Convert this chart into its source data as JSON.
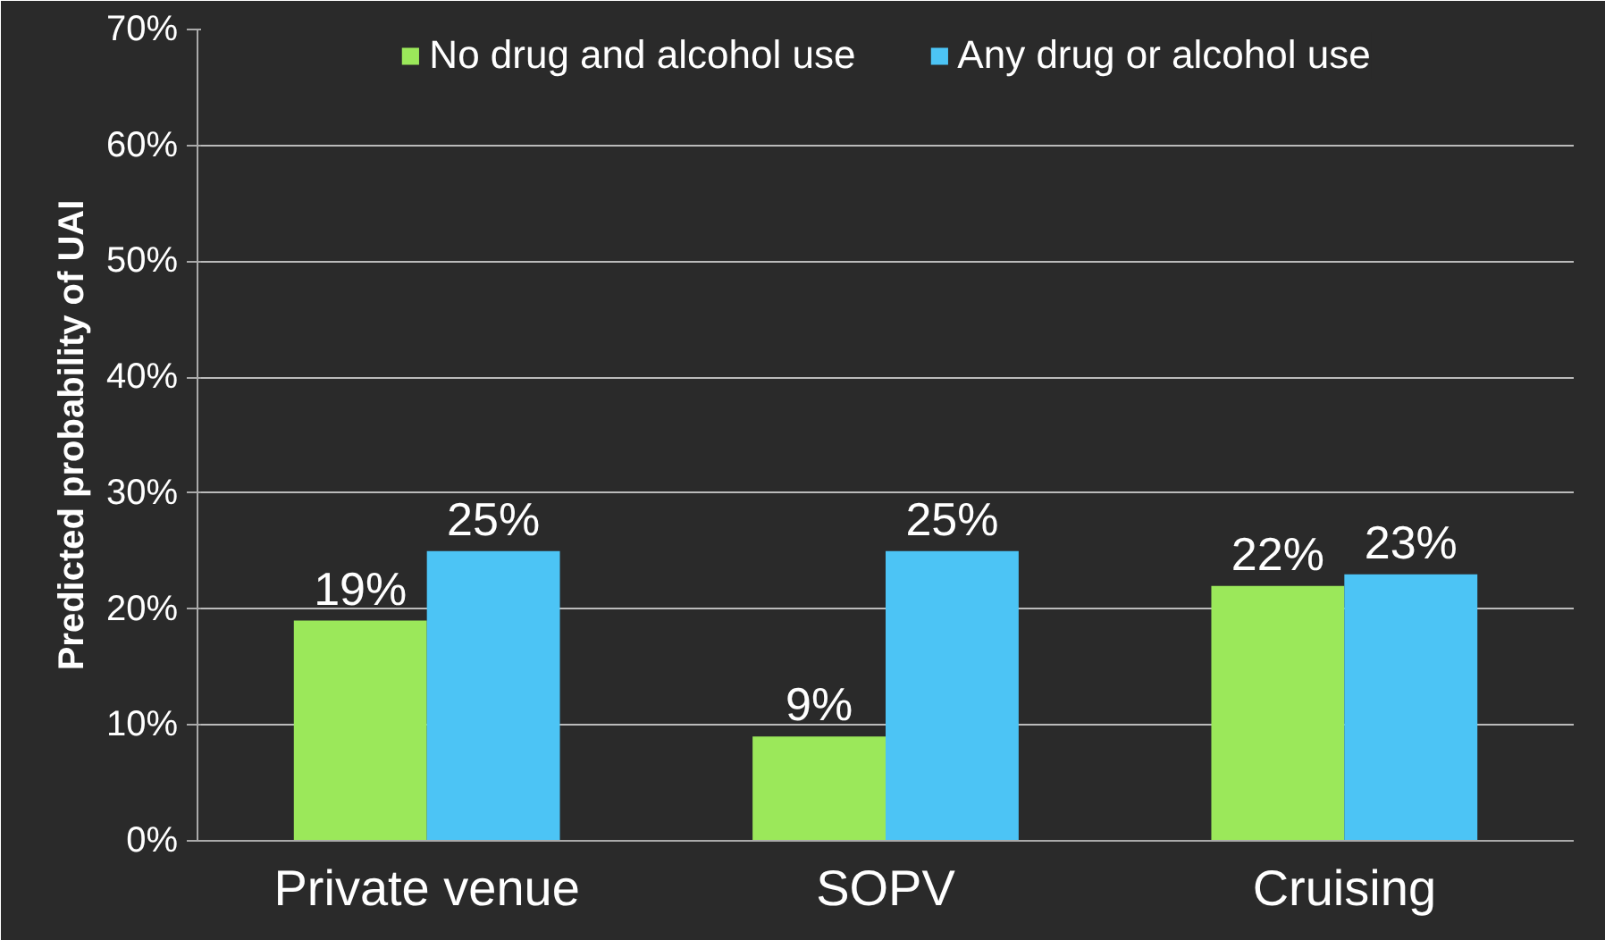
{
  "chart_data": {
    "type": "bar",
    "ylabel": "Predicted probability of UAI",
    "categories": [
      "Private venue",
      "SOPV",
      "Cruising"
    ],
    "series": [
      {
        "name": "No drug and alcohol use",
        "color": "#9be85a",
        "values": [
          19,
          9,
          22
        ],
        "value_labels": [
          "19%",
          "9%",
          "22%"
        ]
      },
      {
        "name": "Any drug or alcohol use",
        "color": "#4cc4f5",
        "values": [
          25,
          25,
          23
        ],
        "value_labels": [
          "25%",
          "25%",
          "23%"
        ]
      }
    ],
    "ylim": [
      0,
      70
    ],
    "yticks": [
      {
        "value": 0,
        "label": "0%"
      },
      {
        "value": 10,
        "label": "10%"
      },
      {
        "value": 20,
        "label": "20%"
      },
      {
        "value": 30,
        "label": "30%"
      },
      {
        "value": 40,
        "label": "40%"
      },
      {
        "value": 50,
        "label": "50%"
      },
      {
        "value": 60,
        "label": "60%"
      },
      {
        "value": 70,
        "label": "70%"
      }
    ],
    "grid": "y",
    "legend": "top"
  }
}
